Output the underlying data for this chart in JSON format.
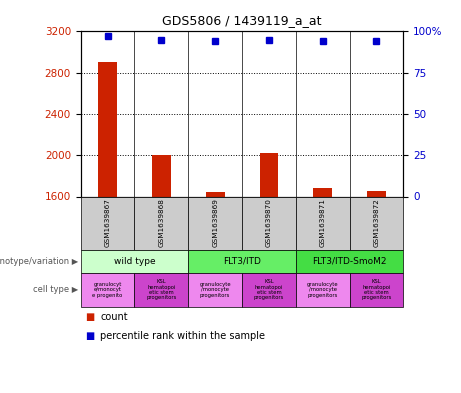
{
  "title": "GDS5806 / 1439119_a_at",
  "samples": [
    "GSM1639867",
    "GSM1639868",
    "GSM1639869",
    "GSM1639870",
    "GSM1639871",
    "GSM1639872"
  ],
  "counts": [
    2900,
    2000,
    1640,
    2020,
    1680,
    1650
  ],
  "percentiles": [
    97,
    95,
    94,
    95,
    94,
    94
  ],
  "ylim_left": [
    1600,
    3200
  ],
  "ylim_right": [
    0,
    100
  ],
  "yticks_left": [
    1600,
    2000,
    2400,
    2800,
    3200
  ],
  "yticks_right": [
    0,
    25,
    50,
    75,
    100
  ],
  "bar_color": "#cc2200",
  "dot_color": "#0000cc",
  "genotype_groups": [
    {
      "label": "wild type",
      "start": 0,
      "end": 2,
      "color": "#ccffcc"
    },
    {
      "label": "FLT3/ITD",
      "start": 2,
      "end": 4,
      "color": "#66ee66"
    },
    {
      "label": "FLT3/ITD-SmoM2",
      "start": 4,
      "end": 6,
      "color": "#44dd44"
    }
  ],
  "cell_colors": [
    "#ee88ee",
    "#cc44cc",
    "#ee88ee",
    "#cc44cc",
    "#ee88ee",
    "#cc44cc"
  ],
  "cell_type_labels": [
    "granulocyt\ne/monocyt\ne progenito",
    "KSL\nhematopoi\netic stem\nprogenitors",
    "granulocyte\n/monocyte\nprogenitors",
    "KSL\nhematopoi\netic stem\nprogenitors",
    "granulocyte\n/monocyte\nprogenitors",
    "KSL\nhematopoi\netic stem\nprogenitors"
  ],
  "left_label_color": "#cc2200",
  "right_label_color": "#0000cc",
  "bg_color": "#ffffff",
  "sample_bg_color": "#cccccc",
  "legend_count_color": "#cc2200",
  "legend_pct_color": "#0000cc",
  "geno_colors": [
    "#ccffcc",
    "#66ee66",
    "#44dd44"
  ]
}
